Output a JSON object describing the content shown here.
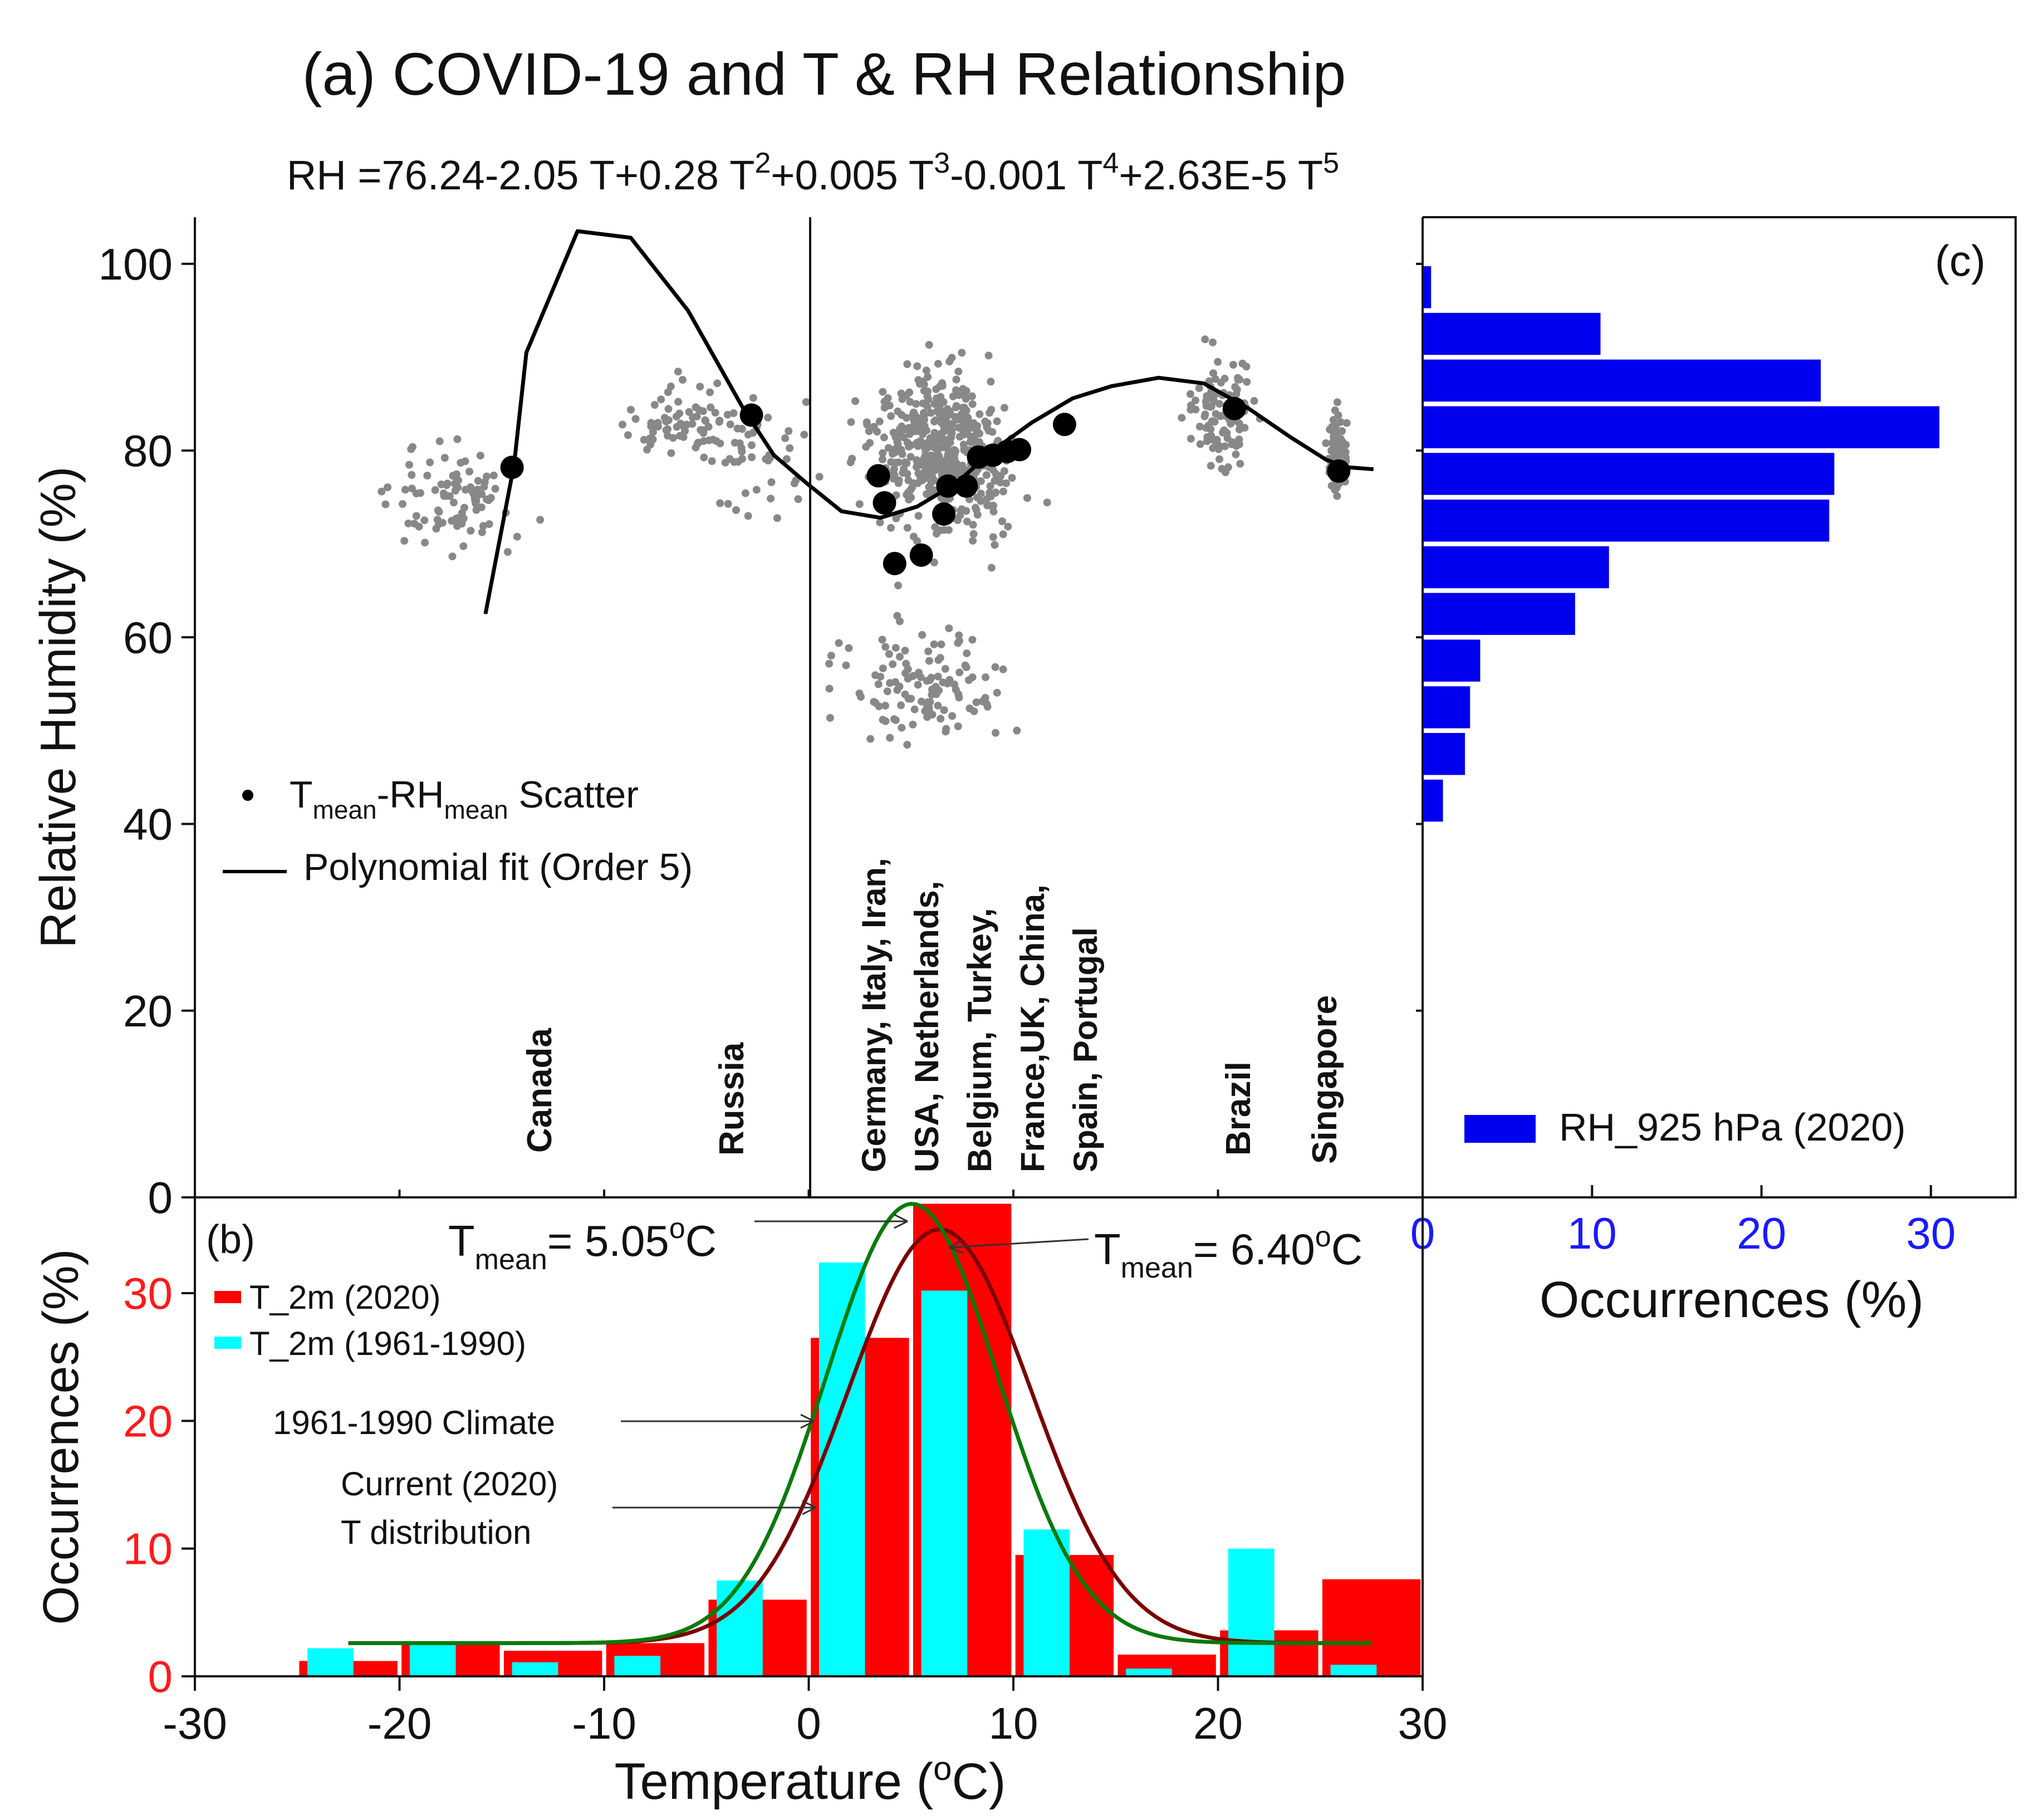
{
  "figure_title": "(a) COVID-19 and T & RH Relationship",
  "equation": {
    "lead": "RH =76.24-2.05 T+0.28 T",
    "sup1": "2",
    "mid1": "+0.005 T",
    "sup2": "3",
    "mid2": "-0.001 T",
    "sup3": "4",
    "mid3": "+2.63E-5 T",
    "sup4": "5"
  },
  "colors": {
    "scatter": "#888888",
    "mean_points": "#000000",
    "fit": "#000000",
    "rh_bars": "#0000ee",
    "t2020_bars": "#ff0000",
    "t1961_bars": "#00ffff",
    "curve_2020": "#7a0000",
    "curve_1961": "#0a7a0a",
    "blue_label": "#1a1aff",
    "red_label": "#ff1a1a"
  },
  "labels": {
    "canada": "Canada",
    "russia": "Russia",
    "brazil": "Brazil",
    "singapore": "Singapore",
    "europe_col1": "Germany, Italy, Iran,",
    "europe_col2": "USA, Netherlands,",
    "europe_col3": "Belgium, Turkey,",
    "europe_col4": "France,UK, China,",
    "europe_col5": "Spain, Portugal"
  },
  "legend_a": {
    "scatter_T": "T",
    "scatter_T_sub": "mean",
    "scatter_mid": "-RH",
    "scatter_RH_sub": "mean",
    "scatter_tail": " Scatter",
    "fit": "Polynomial fit (Order 5)"
  },
  "legend_b": {
    "panel": "(b)",
    "t2020": "T_2m (2020)",
    "t1961": "T_2m (1961-1990)"
  },
  "legend_c": {
    "panel": "(c)",
    "rh": "RH_925 hPa (2020)"
  },
  "annotations": {
    "tmean1_T": "T",
    "tmean1_sub": "mean",
    "tmean1_val": "= 5.05",
    "tmean1_sup": "o",
    "tmean1_unit": "C",
    "tmean2_T": "T",
    "tmean2_sub": "mean",
    "tmean2_val": "= 6.40",
    "tmean2_sup": "o",
    "tmean2_unit": "C",
    "climate": "1961-1990 Climate",
    "current1": "Current (2020)",
    "current2": "T distribution"
  },
  "axes": {
    "ylabel_a": "Relative Humidity (%)",
    "ylabel_b": "Occurrences (%)",
    "xlabel_b_pre": "Temperature (",
    "xlabel_b_sup": "o",
    "xlabel_b_post": "C)",
    "xlabel_c": "Occurrences (%)"
  },
  "chart_data": [
    {
      "id": "a",
      "type": "scatter",
      "title": "(a) COVID-19 and T & RH Relationship",
      "xlabel": "Temperature (oC)",
      "ylabel": "Relative Humidity (%)",
      "xlim": [
        -30,
        30
      ],
      "ylim": [
        0,
        105
      ],
      "yticks": [
        0,
        20,
        40,
        60,
        80,
        100
      ],
      "mean_points": [
        [
          -14.5,
          78.2
        ],
        [
          -2.8,
          83.8
        ],
        [
          3.4,
          77.3
        ],
        [
          3.7,
          74.4
        ],
        [
          4.2,
          67.9
        ],
        [
          5.5,
          68.8
        ],
        [
          6.6,
          73.2
        ],
        [
          6.8,
          76.2
        ],
        [
          7.7,
          76.2
        ],
        [
          8.3,
          79.3
        ],
        [
          9.0,
          79.5
        ],
        [
          9.7,
          79.9
        ],
        [
          10.3,
          80.1
        ],
        [
          12.5,
          82.8
        ],
        [
          20.8,
          84.5
        ],
        [
          25.9,
          77.8
        ]
      ],
      "polynomial_fit": {
        "x": [
          -15.8,
          -14.4,
          -13.8,
          -11.3,
          -8.7,
          -5.9,
          -3.2,
          -1.7,
          -0.1,
          1.6,
          3.5,
          5.3,
          7.2,
          9.0,
          10.9,
          12.9,
          14.8,
          17.1,
          19.3,
          21.5,
          23.5,
          25.3,
          26.4,
          27.6
        ],
        "y": [
          62.5,
          78.5,
          90.5,
          103.5,
          102.8,
          95.0,
          84.5,
          79.5,
          76.5,
          73.5,
          72.8,
          74.0,
          76.5,
          80.0,
          83.0,
          85.6,
          86.9,
          87.8,
          87.2,
          84.5,
          81.5,
          79.0,
          78.2,
          78.0
        ]
      },
      "cluster_labels": [
        {
          "text": "Canada",
          "x": -14.0
        },
        {
          "text": "Russia",
          "x": -4.0
        },
        {
          "text": "Germany, Italy, Iran, USA, Netherlands, Belgium, Turkey, France,UK, China, Spain, Portugal",
          "x": 6.0
        },
        {
          "text": "Brazil",
          "x": 20.5
        },
        {
          "text": "Singapore",
          "x": 25.8
        }
      ],
      "divider_x": 0,
      "scatter_clusters_note": "approx. 1000 grey daily points; clusters summarised by centre (x, y) and spread (sx, sy), count n",
      "scatter_clusters": [
        {
          "cx": -17.5,
          "cy": 75.0,
          "sx": 3.2,
          "sy": 5.0,
          "n": 90
        },
        {
          "cx": -6.0,
          "cy": 83.0,
          "sx": 3.0,
          "sy": 4.0,
          "n": 80
        },
        {
          "cx": -2.5,
          "cy": 78.0,
          "sx": 3.0,
          "sy": 6.0,
          "n": 40
        },
        {
          "cx": 6.5,
          "cy": 80.0,
          "sx": 3.3,
          "sy": 8.0,
          "n": 500
        },
        {
          "cx": 5.5,
          "cy": 55.0,
          "sx": 4.0,
          "sy": 7.0,
          "n": 120
        },
        {
          "cx": 20.3,
          "cy": 84.0,
          "sx": 1.6,
          "sy": 6.0,
          "n": 110
        },
        {
          "cx": 25.8,
          "cy": 79.5,
          "sx": 0.4,
          "sy": 4.5,
          "n": 110
        }
      ]
    },
    {
      "id": "b",
      "type": "bar",
      "xlabel": "Temperature (oC)",
      "ylabel": "Occurrences (%)",
      "xlim": [
        -30,
        30
      ],
      "ylim": [
        0,
        37.5
      ],
      "xticks": [
        -30,
        -20,
        -10,
        0,
        10,
        20,
        30
      ],
      "yticks": [
        0,
        10,
        20,
        30
      ],
      "bin_width": 5,
      "series": [
        {
          "name": "T_2m (2020)",
          "bin_centers": [
            -22.5,
            -17.5,
            -12.5,
            -7.5,
            -2.5,
            2.5,
            7.5,
            12.5,
            17.5,
            22.5,
            27.5
          ],
          "values": [
            1.2,
            2.6,
            2.0,
            2.6,
            6.0,
            26.5,
            37.0,
            9.5,
            1.7,
            3.6,
            7.6
          ]
        },
        {
          "name": "T_2m (1961-1990)",
          "bin_centers": [
            -22.5,
            -17.5,
            -12.5,
            -7.5,
            -2.5,
            2.5,
            7.5,
            12.5,
            17.5,
            22.5,
            27.5
          ],
          "values": [
            2.2,
            2.5,
            1.1,
            1.6,
            7.5,
            32.4,
            30.2,
            11.5,
            0.6,
            10.0,
            0.9
          ]
        }
      ],
      "curves": [
        {
          "name": "Current (2020) T distribution",
          "mean": 6.4,
          "peak": 35.0,
          "sigma": 4.5,
          "baseline": 2.6,
          "x_range": [
            -22.5,
            27.5
          ]
        },
        {
          "name": "1961-1990 Climate",
          "mean": 5.05,
          "peak": 37.0,
          "sigma": 4.2,
          "baseline": 2.6,
          "x_range": [
            -22.5,
            27.5
          ]
        }
      ],
      "annotations": [
        "Tmean= 5.05oC",
        "Tmean= 6.40oC",
        "1961-1990 Climate",
        "Current (2020) T distribution"
      ]
    },
    {
      "id": "c",
      "type": "bar",
      "orientation": "horizontal",
      "xlabel": "Occurrences (%)",
      "xlim": [
        0,
        35
      ],
      "xticks": [
        0,
        10,
        20,
        30
      ],
      "series": [
        {
          "name": "RH_925 hPa (2020)",
          "bin_centers": [
            42.5,
            47.5,
            52.5,
            57.5,
            62.5,
            67.5,
            72.5,
            77.5,
            82.5,
            87.5,
            92.5,
            97.5,
            102.5
          ],
          "values": [
            1.2,
            2.5,
            2.8,
            3.4,
            9.0,
            11.0,
            24.0,
            24.3,
            30.5,
            23.5,
            10.5,
            0.5,
            0.0
          ]
        }
      ]
    }
  ]
}
